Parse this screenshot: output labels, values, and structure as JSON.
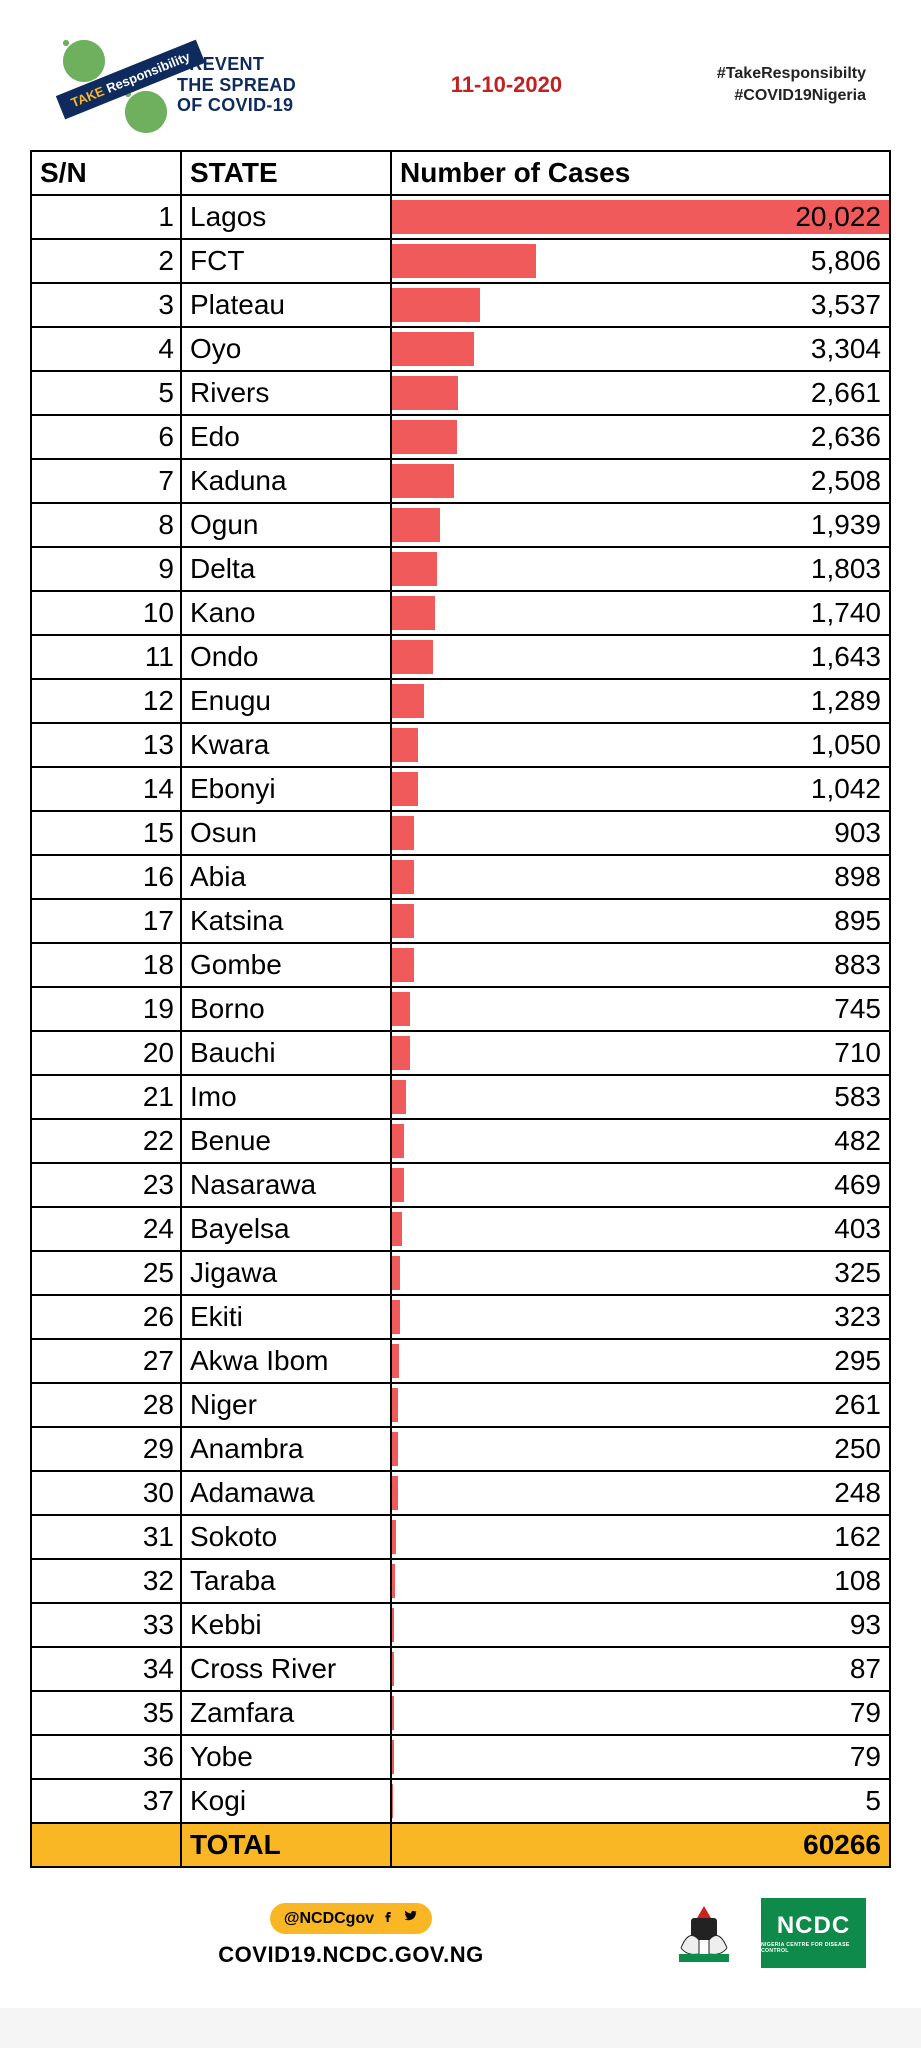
{
  "slogan_line1": "PREVENT",
  "slogan_line2": "THE SPREAD",
  "slogan_line3": "OF COVID-19",
  "banner_take": "TAKE",
  "banner_resp": "Responsibility",
  "date": "11-10-2020",
  "hashtag1": "#TakeResponsibilty",
  "hashtag2": "#COVID19Nigeria",
  "columns": {
    "sn": "S/N",
    "state": "STATE",
    "cases": "Number of Cases"
  },
  "bar_color": "#f15a5a",
  "max_value": 20022,
  "rows": [
    {
      "sn": 1,
      "state": "Lagos",
      "cases": 20022,
      "label": "20,022"
    },
    {
      "sn": 2,
      "state": "FCT",
      "cases": 5806,
      "label": "5,806"
    },
    {
      "sn": 3,
      "state": "Plateau",
      "cases": 3537,
      "label": "3,537"
    },
    {
      "sn": 4,
      "state": "Oyo",
      "cases": 3304,
      "label": "3,304"
    },
    {
      "sn": 5,
      "state": "Rivers",
      "cases": 2661,
      "label": "2,661"
    },
    {
      "sn": 6,
      "state": "Edo",
      "cases": 2636,
      "label": "2,636"
    },
    {
      "sn": 7,
      "state": "Kaduna",
      "cases": 2508,
      "label": "2,508"
    },
    {
      "sn": 8,
      "state": "Ogun",
      "cases": 1939,
      "label": "1,939"
    },
    {
      "sn": 9,
      "state": "Delta",
      "cases": 1803,
      "label": "1,803"
    },
    {
      "sn": 10,
      "state": "Kano",
      "cases": 1740,
      "label": "1,740"
    },
    {
      "sn": 11,
      "state": "Ondo",
      "cases": 1643,
      "label": "1,643"
    },
    {
      "sn": 12,
      "state": "Enugu",
      "cases": 1289,
      "label": "1,289"
    },
    {
      "sn": 13,
      "state": "Kwara",
      "cases": 1050,
      "label": "1,050"
    },
    {
      "sn": 14,
      "state": "Ebonyi",
      "cases": 1042,
      "label": "1,042"
    },
    {
      "sn": 15,
      "state": "Osun",
      "cases": 903,
      "label": "903"
    },
    {
      "sn": 16,
      "state": "Abia",
      "cases": 898,
      "label": "898"
    },
    {
      "sn": 17,
      "state": "Katsina",
      "cases": 895,
      "label": "895"
    },
    {
      "sn": 18,
      "state": "Gombe",
      "cases": 883,
      "label": "883"
    },
    {
      "sn": 19,
      "state": "Borno",
      "cases": 745,
      "label": "745"
    },
    {
      "sn": 20,
      "state": "Bauchi",
      "cases": 710,
      "label": "710"
    },
    {
      "sn": 21,
      "state": "Imo",
      "cases": 583,
      "label": "583"
    },
    {
      "sn": 22,
      "state": "Benue",
      "cases": 482,
      "label": "482"
    },
    {
      "sn": 23,
      "state": "Nasarawa",
      "cases": 469,
      "label": "469"
    },
    {
      "sn": 24,
      "state": "Bayelsa",
      "cases": 403,
      "label": "403"
    },
    {
      "sn": 25,
      "state": "Jigawa",
      "cases": 325,
      "label": "325"
    },
    {
      "sn": 26,
      "state": "Ekiti",
      "cases": 323,
      "label": "323"
    },
    {
      "sn": 27,
      "state": "Akwa Ibom",
      "cases": 295,
      "label": "295"
    },
    {
      "sn": 28,
      "state": "Niger",
      "cases": 261,
      "label": "261"
    },
    {
      "sn": 29,
      "state": "Anambra",
      "cases": 250,
      "label": "250"
    },
    {
      "sn": 30,
      "state": "Adamawa",
      "cases": 248,
      "label": "248"
    },
    {
      "sn": 31,
      "state": "Sokoto",
      "cases": 162,
      "label": "162"
    },
    {
      "sn": 32,
      "state": "Taraba",
      "cases": 108,
      "label": "108"
    },
    {
      "sn": 33,
      "state": "Kebbi",
      "cases": 93,
      "label": "93"
    },
    {
      "sn": 34,
      "state": "Cross River",
      "cases": 87,
      "label": "87"
    },
    {
      "sn": 35,
      "state": "Zamfara",
      "cases": 79,
      "label": "79"
    },
    {
      "sn": 36,
      "state": "Yobe",
      "cases": 79,
      "label": "79"
    },
    {
      "sn": 37,
      "state": "Kogi",
      "cases": 5,
      "label": "5"
    }
  ],
  "total_label": "TOTAL",
  "total_value": "60266",
  "handle": "@NCDCgov",
  "url": "COVID19.NCDC.GOV.NG",
  "ncdc_label": "NCDC",
  "ncdc_sub": "NIGERIA CENTRE FOR DISEASE CONTROL"
}
